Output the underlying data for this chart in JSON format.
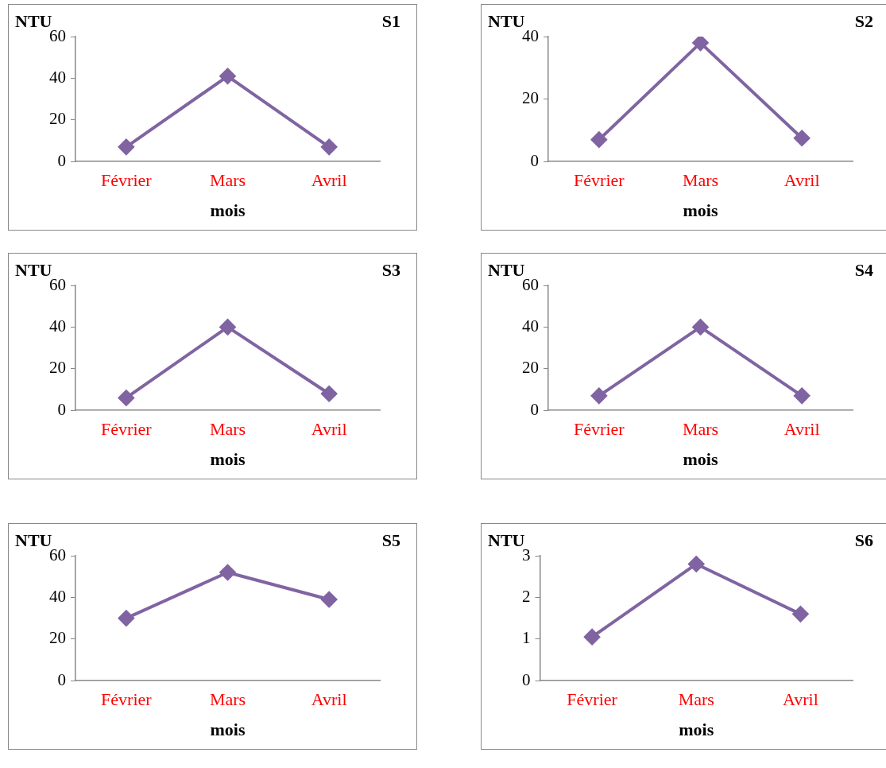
{
  "chart_data": [
    {
      "type": "line",
      "title": "S1",
      "ylabel": "NTU",
      "xlabel": "mois",
      "categories": [
        "Février",
        "Mars",
        "Avril"
      ],
      "series": [
        {
          "color": "#8064a2",
          "values": [
            7,
            41,
            7
          ]
        }
      ],
      "ylim": [
        0,
        60
      ],
      "yticks": [
        0,
        20,
        40,
        60
      ],
      "grid": false,
      "legend": false,
      "marker": "diamond",
      "line_style": "solid"
    },
    {
      "type": "line",
      "title": "S2",
      "ylabel": "NTU",
      "xlabel": "mois",
      "categories": [
        "Février",
        "Mars",
        "Avril"
      ],
      "series": [
        {
          "color": "#8064a2",
          "values": [
            7,
            38,
            7.5
          ]
        }
      ],
      "ylim": [
        0,
        40
      ],
      "yticks": [
        0,
        20,
        40
      ],
      "grid": false,
      "legend": false,
      "marker": "diamond",
      "line_style": "solid"
    },
    {
      "type": "line",
      "title": "S3",
      "ylabel": "NTU",
      "xlabel": "mois",
      "categories": [
        "Février",
        "Mars",
        "Avril"
      ],
      "series": [
        {
          "color": "#8064a2",
          "values": [
            6,
            40,
            8
          ]
        }
      ],
      "ylim": [
        0,
        60
      ],
      "yticks": [
        0,
        20,
        40,
        60
      ],
      "grid": false,
      "legend": false,
      "marker": "diamond",
      "line_style": "solid"
    },
    {
      "type": "line",
      "title": "S4",
      "ylabel": "NTU",
      "xlabel": "mois",
      "categories": [
        "Février",
        "Mars",
        "Avril"
      ],
      "series": [
        {
          "color": "#8064a2",
          "values": [
            7,
            40,
            7
          ]
        }
      ],
      "ylim": [
        0,
        60
      ],
      "yticks": [
        0,
        20,
        40,
        60
      ],
      "grid": false,
      "legend": false,
      "marker": "diamond",
      "line_style": "solid"
    },
    {
      "type": "line",
      "title": "S5",
      "ylabel": "NTU",
      "xlabel": "mois",
      "categories": [
        "Février",
        "Mars",
        "Avril"
      ],
      "series": [
        {
          "color": "#8064a2",
          "values": [
            30,
            52,
            39
          ]
        }
      ],
      "ylim": [
        0,
        60
      ],
      "yticks": [
        0,
        20,
        40,
        60
      ],
      "grid": false,
      "legend": false,
      "marker": "diamond",
      "line_style": "solid"
    },
    {
      "type": "line",
      "title": "S6",
      "ylabel": "NTU",
      "xlabel": "mois",
      "categories": [
        "Février",
        "Mars",
        "Avril"
      ],
      "series": [
        {
          "color": "#8064a2",
          "values": [
            1.05,
            2.8,
            1.6
          ]
        }
      ],
      "ylim": [
        0,
        3
      ],
      "yticks": [
        0,
        1,
        2,
        3
      ],
      "grid": false,
      "legend": false,
      "marker": "diamond",
      "line_style": "solid"
    }
  ]
}
